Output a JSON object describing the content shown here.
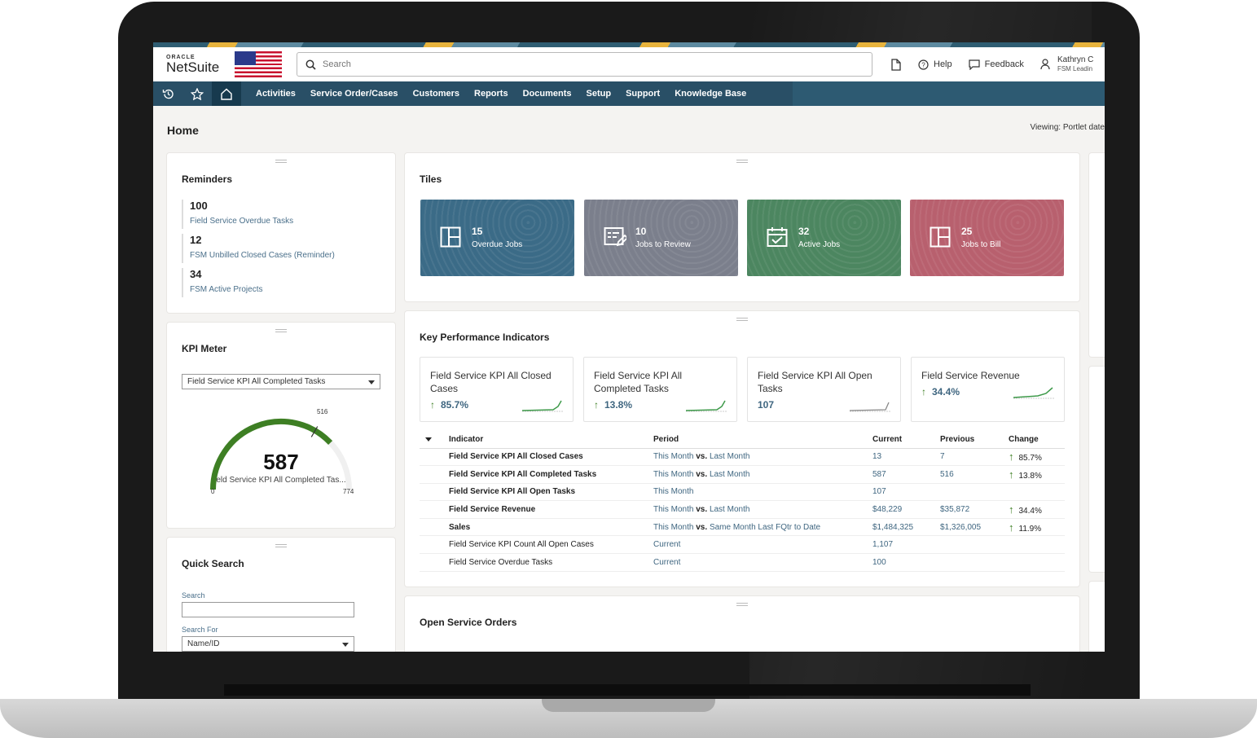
{
  "header": {
    "logo_oracle": "ORACLE",
    "logo_netsuite": "NetSuite",
    "search_placeholder": "Search",
    "help_label": "Help",
    "feedback_label": "Feedback",
    "user_name": "Kathryn C",
    "user_role": "FSM Leadin"
  },
  "nav": {
    "items": [
      "Activities",
      "Service Order/Cases",
      "Customers",
      "Reports",
      "Documents",
      "Setup",
      "Support",
      "Knowledge Base"
    ]
  },
  "page": {
    "title": "Home",
    "viewing": "Viewing: Portlet date"
  },
  "reminders": {
    "title": "Reminders",
    "items": [
      {
        "count": "100",
        "label": "Field Service Overdue Tasks"
      },
      {
        "count": "12",
        "label": "FSM Unbilled Closed Cases (Reminder)"
      },
      {
        "count": "34",
        "label": "FSM Active Projects"
      }
    ]
  },
  "kpi_meter": {
    "title": "KPI Meter",
    "selected": "Field Service KPI All Completed Tasks",
    "value": "587",
    "previous": "516",
    "min": "0",
    "max": "774",
    "value_num": 587,
    "max_num": 774,
    "prev_num": 516,
    "label": "eld Service KPI All Completed Tas..."
  },
  "quick_search": {
    "title": "Quick Search",
    "search_label": "Search",
    "search_for_label": "Search For",
    "search_for_value": "Name/ID"
  },
  "tiles": {
    "title": "Tiles",
    "items": [
      {
        "count": "15",
        "label": "Overdue Jobs",
        "color": "#3b6b87",
        "icon": "layout-icon"
      },
      {
        "count": "10",
        "label": "Jobs to Review",
        "color": "#7b7f8c",
        "icon": "review-icon"
      },
      {
        "count": "32",
        "label": "Active Jobs",
        "color": "#4c8660",
        "icon": "calendar-check-icon"
      },
      {
        "count": "25",
        "label": "Jobs to Bill",
        "color": "#b8606e",
        "icon": "layout-icon"
      }
    ]
  },
  "kpis": {
    "title": "Key Performance Indicators",
    "cards": [
      {
        "title": "Field Service KPI All Closed Cases",
        "value": "85.7%",
        "arrow": "↑"
      },
      {
        "title": "Field Service KPI All Completed Tasks",
        "value": "13.8%",
        "arrow": "↑"
      },
      {
        "title": "Field Service KPI All Open Tasks",
        "value": "107",
        "arrow": ""
      },
      {
        "title": "Field Service Revenue",
        "value": "34.4%",
        "arrow": "↑"
      }
    ],
    "columns": {
      "indicator": "Indicator",
      "period": "Period",
      "current": "Current",
      "previous": "Previous",
      "change": "Change"
    },
    "rows": [
      {
        "indicator": "Field Service KPI All Closed Cases",
        "p1": "This Month",
        "vs": "vs.",
        "p2": "Last Month",
        "current": "13",
        "previous": "7",
        "arrow": "↑",
        "change": "85.7%",
        "bold": true
      },
      {
        "indicator": "Field Service KPI All Completed Tasks",
        "p1": "This Month",
        "vs": "vs.",
        "p2": "Last Month",
        "current": "587",
        "previous": "516",
        "arrow": "↑",
        "change": "13.8%",
        "bold": true
      },
      {
        "indicator": "Field Service KPI All Open Tasks",
        "p1": "This Month",
        "vs": "",
        "p2": "",
        "current": "107",
        "previous": "",
        "arrow": "",
        "change": "",
        "bold": true
      },
      {
        "indicator": "Field Service Revenue",
        "p1": "This Month",
        "vs": "vs.",
        "p2": "Last Month",
        "current": "$48,229",
        "previous": "$35,872",
        "arrow": "↑",
        "change": "34.4%",
        "bold": true
      },
      {
        "indicator": "Sales",
        "p1": "This Month",
        "vs": "vs.",
        "p2": "Same Month Last FQtr to Date",
        "current": "$1,484,325",
        "previous": "$1,326,005",
        "arrow": "↑",
        "change": "11.9%",
        "bold": true
      },
      {
        "indicator": "Field Service KPI Count All Open Cases",
        "p1": "Current",
        "vs": "",
        "p2": "",
        "current": "1,107",
        "previous": "",
        "arrow": "",
        "change": "",
        "bold": false
      },
      {
        "indicator": "Field Service Overdue Tasks",
        "p1": "Current",
        "vs": "",
        "p2": "",
        "current": "100",
        "previous": "",
        "arrow": "",
        "change": "",
        "bold": false
      }
    ]
  },
  "open_orders": {
    "title": "Open Service Orders"
  }
}
